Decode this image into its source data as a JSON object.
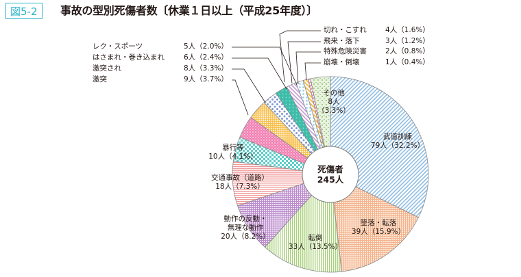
{
  "figure": {
    "badge": "図5-2",
    "title": "事故の型別死傷者数〔休業１日以上（平成25年度）〕"
  },
  "center": {
    "line1": "死傷者",
    "line2": "245人"
  },
  "chart_data": {
    "type": "pie",
    "subtype": "donut",
    "title": "事故の型別死傷者数〔休業１日以上（平成25年度）〕",
    "total_label": "死傷者 245人",
    "total": 245,
    "start_angle": "12 o'clock, clockwise",
    "categories": [
      "武道訓練",
      "墜落・転落",
      "転倒",
      "動作の反動・無理な動作",
      "交通事故（道路）",
      "暴行等",
      "激突",
      "激突され",
      "はさまれ・巻き込まれ",
      "レク・スポーツ",
      "切れ・こすれ",
      "飛来・落下",
      "特殊危険災害",
      "崩壊・倒壊",
      "その他"
    ],
    "values": [
      79,
      39,
      33,
      20,
      18,
      10,
      9,
      8,
      6,
      5,
      4,
      3,
      2,
      1,
      8
    ],
    "percent": [
      32.2,
      15.9,
      13.5,
      8.2,
      7.3,
      4.1,
      3.7,
      3.3,
      2.4,
      2.0,
      1.6,
      1.2,
      0.8,
      0.4,
      3.3
    ],
    "colors": [
      "#9fc6e6",
      "#f5c4a4",
      "#b9d98a",
      "#c9a6d6",
      "#f2a7a7",
      "#7fd6d3",
      "#f08cb8",
      "#f7c45a",
      "#8fa6d8",
      "#3fbfae",
      "#c9a6d6",
      "#9fd2ef",
      "#f7c45a",
      "#f08cb8",
      "#a8d08d"
    ]
  },
  "labels": {
    "budo": {
      "name": "武道訓練",
      "value": "79人（32.2%）"
    },
    "tsuiraku": {
      "name": "墜落・転落",
      "value": "39人（15.9%）"
    },
    "tento": {
      "name": "転倒",
      "value": "33人（13.5%）"
    },
    "dosa": {
      "name1": "動作の反動・",
      "name2": "無理な動作",
      "value": "20人（8.2%）"
    },
    "kotsu": {
      "name": "交通事故（道路）",
      "value": "18人（7.3%）"
    },
    "boko": {
      "name": "暴行等",
      "value": "10人（4.1%）"
    },
    "sonota": {
      "name": "その他",
      "count": "8人",
      "pct": "（3.3%）"
    },
    "left": [
      {
        "name": "レク・スポーツ",
        "value": "5人（2.0%）"
      },
      {
        "name": "はさまれ・巻き込まれ",
        "value": "6人（2.4%）"
      },
      {
        "name": "激突され",
        "value": "8人（3.3%）"
      },
      {
        "name": "激突",
        "value": "9人（3.7%）"
      }
    ],
    "right": [
      {
        "name": "切れ・こすれ",
        "value": "4人（1.6%）"
      },
      {
        "name": "飛来・落下",
        "value": "3人（1.2%）"
      },
      {
        "name": "特殊危険災害",
        "value": "2人（0.8%）"
      },
      {
        "name": "崩壊・倒壊",
        "value": "1人（0.4%）"
      }
    ]
  }
}
